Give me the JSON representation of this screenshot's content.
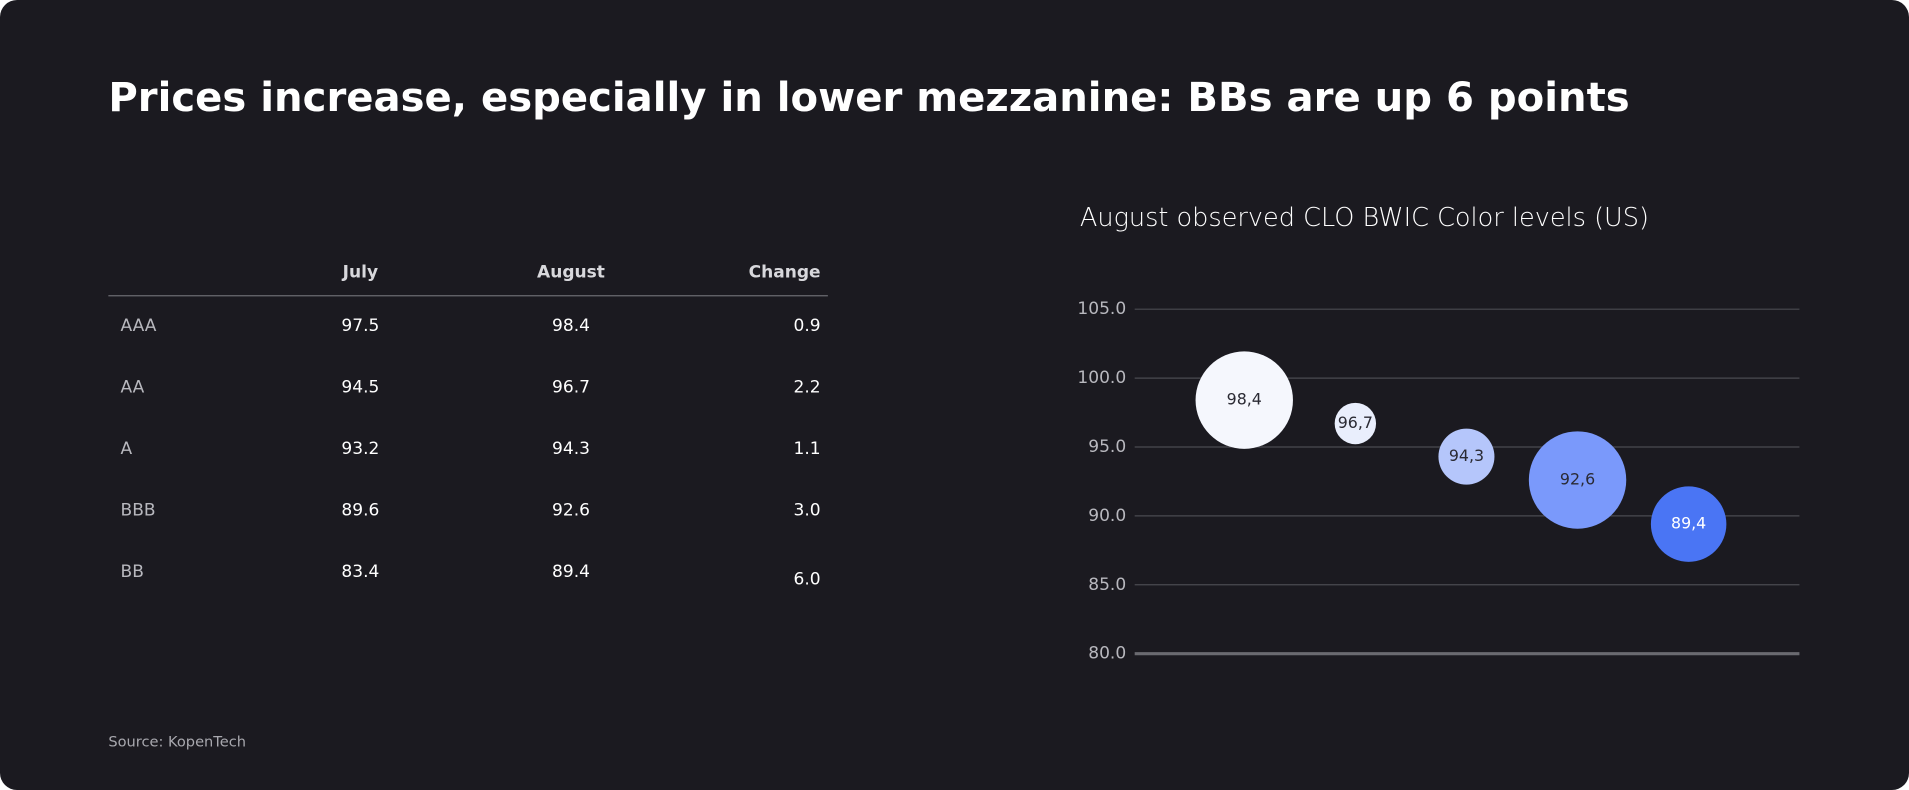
{
  "header": {
    "title": "Prices increase, especially in lower mezzanine: BBs are up 6 points"
  },
  "table": {
    "columns": [
      "July",
      "August",
      "Change"
    ],
    "rows": [
      [
        "AAA",
        "97.5",
        "98.4",
        "0.9"
      ],
      [
        "AA",
        "94.5",
        "96.7",
        "2.2"
      ],
      [
        "A",
        "93.2",
        "94.3",
        "1.1"
      ],
      [
        "BBB",
        "89.6",
        "92.6",
        "3.0"
      ],
      [
        "BB",
        "83.4",
        "89.4",
        "6.0"
      ]
    ]
  },
  "chart_data": {
    "type": "bubble",
    "title": "August observed CLO BWIC Color levels (US)",
    "categories": [
      null,
      null,
      null,
      null,
      null
    ],
    "values": [
      98.4,
      96.7,
      94.3,
      92.6,
      89.4
    ],
    "value_labels": [
      "98,4",
      "96,7",
      "94,3",
      "92,6",
      "89,4"
    ],
    "sizes": [
      40,
      17,
      23,
      40,
      31
    ],
    "colors": [
      "#f5f7fd",
      "#e9eefc",
      "#b5c6fb",
      "#7a99fb",
      "#4a75f4"
    ],
    "ylim": [
      80,
      105
    ],
    "yticks": [
      {
        "value": 80,
        "label": "80.0"
      },
      {
        "value": 85,
        "label": "85.0"
      },
      {
        "value": 90,
        "label": "90.0"
      },
      {
        "value": 95,
        "label": "95.0"
      },
      {
        "value": 100,
        "label": "100.0"
      },
      {
        "value": 105,
        "label": "105.0"
      }
    ],
    "grid": true
  },
  "source": "Source: KopenTech"
}
